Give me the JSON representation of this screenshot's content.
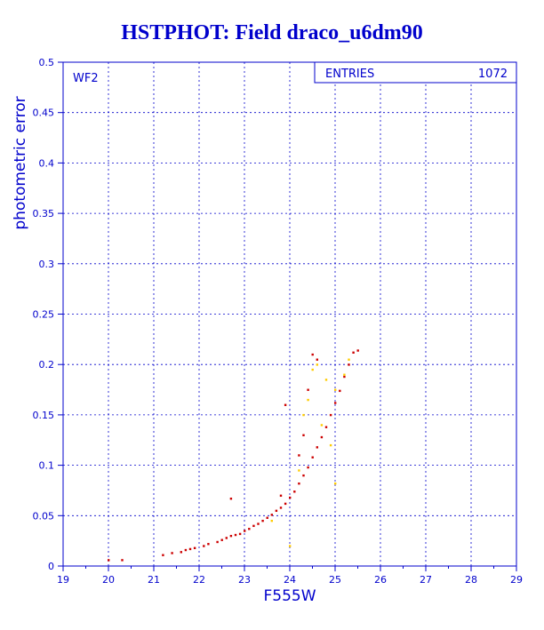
{
  "chart_data": {
    "type": "scatter",
    "title": "HSTPHOT: Field draco_u6dm90",
    "xlabel": "F555W",
    "ylabel": "photometric error",
    "xlim": [
      19,
      29
    ],
    "ylim": [
      0,
      0.5
    ],
    "xticks": [
      "19",
      "20",
      "21",
      "22",
      "23",
      "24",
      "25",
      "26",
      "27",
      "28",
      "29"
    ],
    "yticks": [
      "0",
      "0.05",
      "0.1",
      "0.15",
      "0.2",
      "0.25",
      "0.3",
      "0.35",
      "0.4",
      "0.45",
      "0.5"
    ],
    "grid": true,
    "panel_label": "WF2",
    "stats_box": {
      "label": "ENTRIES",
      "value": "1072"
    },
    "colors": {
      "axis": "#0000cc",
      "points_primary": "#cc0000",
      "points_secondary": "#ffcc00",
      "title": "#0000cc"
    },
    "series": [
      {
        "color": "#cc0000",
        "points": [
          [
            20.0,
            0.006
          ],
          [
            20.3,
            0.006
          ],
          [
            21.2,
            0.011
          ],
          [
            21.4,
            0.013
          ],
          [
            21.6,
            0.014
          ],
          [
            21.7,
            0.016
          ],
          [
            21.8,
            0.017
          ],
          [
            21.9,
            0.018
          ],
          [
            22.1,
            0.02
          ],
          [
            22.2,
            0.022
          ],
          [
            22.4,
            0.024
          ],
          [
            22.5,
            0.026
          ],
          [
            22.6,
            0.028
          ],
          [
            22.7,
            0.03
          ],
          [
            22.8,
            0.031
          ],
          [
            22.9,
            0.032
          ],
          [
            23.0,
            0.035
          ],
          [
            23.1,
            0.037
          ],
          [
            23.2,
            0.04
          ],
          [
            23.3,
            0.042
          ],
          [
            23.4,
            0.045
          ],
          [
            23.5,
            0.048
          ],
          [
            23.6,
            0.051
          ],
          [
            23.7,
            0.055
          ],
          [
            23.8,
            0.058
          ],
          [
            23.9,
            0.062
          ],
          [
            24.0,
            0.068
          ],
          [
            24.1,
            0.074
          ],
          [
            24.2,
            0.082
          ],
          [
            24.3,
            0.09
          ],
          [
            24.4,
            0.098
          ],
          [
            24.5,
            0.108
          ],
          [
            24.6,
            0.118
          ],
          [
            24.7,
            0.128
          ],
          [
            24.8,
            0.138
          ],
          [
            24.9,
            0.15
          ],
          [
            25.0,
            0.162
          ],
          [
            25.1,
            0.174
          ],
          [
            25.2,
            0.188
          ],
          [
            25.3,
            0.2
          ],
          [
            25.4,
            0.212
          ],
          [
            25.5,
            0.214
          ],
          [
            24.5,
            0.21
          ],
          [
            24.6,
            0.205
          ],
          [
            24.4,
            0.175
          ],
          [
            24.3,
            0.13
          ],
          [
            24.2,
            0.11
          ],
          [
            23.8,
            0.07
          ],
          [
            22.7,
            0.067
          ],
          [
            23.9,
            0.16
          ]
        ]
      },
      {
        "color": "#ffcc00",
        "points": [
          [
            24.6,
            0.2
          ],
          [
            24.8,
            0.185
          ],
          [
            25.0,
            0.175
          ],
          [
            24.4,
            0.165
          ],
          [
            24.7,
            0.14
          ],
          [
            25.2,
            0.19
          ],
          [
            24.9,
            0.12
          ],
          [
            25.0,
            0.082
          ],
          [
            24.0,
            0.02
          ],
          [
            23.6,
            0.045
          ],
          [
            24.3,
            0.15
          ],
          [
            24.5,
            0.195
          ],
          [
            25.3,
            0.205
          ],
          [
            24.2,
            0.095
          ]
        ]
      }
    ]
  }
}
